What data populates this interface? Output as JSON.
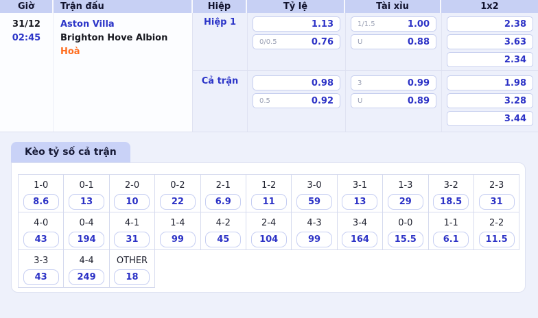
{
  "table": {
    "headers": {
      "time": "Giờ",
      "match": "Trận đấu",
      "half": "Hiệp",
      "ratio": "Tỷ lệ",
      "over_under": "Tài xỉu",
      "one_x_two": "1x2"
    },
    "match": {
      "date": "31/12",
      "time": "02:45",
      "home": "Aston Villa",
      "away": "Brighton Hove Albion",
      "result": "Hoà"
    },
    "periods": [
      {
        "label": "Hiệp 1",
        "ratio": [
          {
            "label": "",
            "value": "1.13"
          },
          {
            "label": "0/0.5",
            "value": "0.76"
          }
        ],
        "over_under": [
          {
            "label": "1/1.5",
            "value": "1.00"
          },
          {
            "label": "U",
            "value": "0.88"
          }
        ],
        "one_x_two": [
          "2.38",
          "3.63",
          "2.34"
        ]
      },
      {
        "label": "Cả trận",
        "ratio": [
          {
            "label": "",
            "value": "0.98"
          },
          {
            "label": "0.5",
            "value": "0.92"
          }
        ],
        "over_under": [
          {
            "label": "3",
            "value": "0.99"
          },
          {
            "label": "U",
            "value": "0.89"
          }
        ],
        "one_x_two": [
          "1.98",
          "3.28",
          "3.44"
        ]
      }
    ]
  },
  "score_section": {
    "tab_label": "Kèo tỷ số cả trận",
    "cells": [
      {
        "score": "1-0",
        "odds": "8.6"
      },
      {
        "score": "0-1",
        "odds": "13"
      },
      {
        "score": "2-0",
        "odds": "10"
      },
      {
        "score": "0-2",
        "odds": "22"
      },
      {
        "score": "2-1",
        "odds": "6.9"
      },
      {
        "score": "1-2",
        "odds": "11"
      },
      {
        "score": "3-0",
        "odds": "59"
      },
      {
        "score": "3-1",
        "odds": "13"
      },
      {
        "score": "1-3",
        "odds": "29"
      },
      {
        "score": "3-2",
        "odds": "18.5"
      },
      {
        "score": "2-3",
        "odds": "31"
      },
      {
        "score": "4-0",
        "odds": "43"
      },
      {
        "score": "0-4",
        "odds": "194"
      },
      {
        "score": "4-1",
        "odds": "31"
      },
      {
        "score": "1-4",
        "odds": "99"
      },
      {
        "score": "4-2",
        "odds": "45"
      },
      {
        "score": "2-4",
        "odds": "104"
      },
      {
        "score": "4-3",
        "odds": "99"
      },
      {
        "score": "3-4",
        "odds": "164"
      },
      {
        "score": "0-0",
        "odds": "15.5"
      },
      {
        "score": "1-1",
        "odds": "6.1"
      },
      {
        "score": "2-2",
        "odds": "11.5"
      },
      {
        "score": "3-3",
        "odds": "43"
      },
      {
        "score": "4-4",
        "odds": "249"
      },
      {
        "score": "OTHER",
        "odds": "18"
      }
    ]
  },
  "colors": {
    "accent_blue": "#2c32c6",
    "result_orange": "#ff6d1f",
    "header_bg": "#c7d0f4",
    "tab_bg": "#c9d2f7",
    "page_bg": "#eef1fb"
  }
}
